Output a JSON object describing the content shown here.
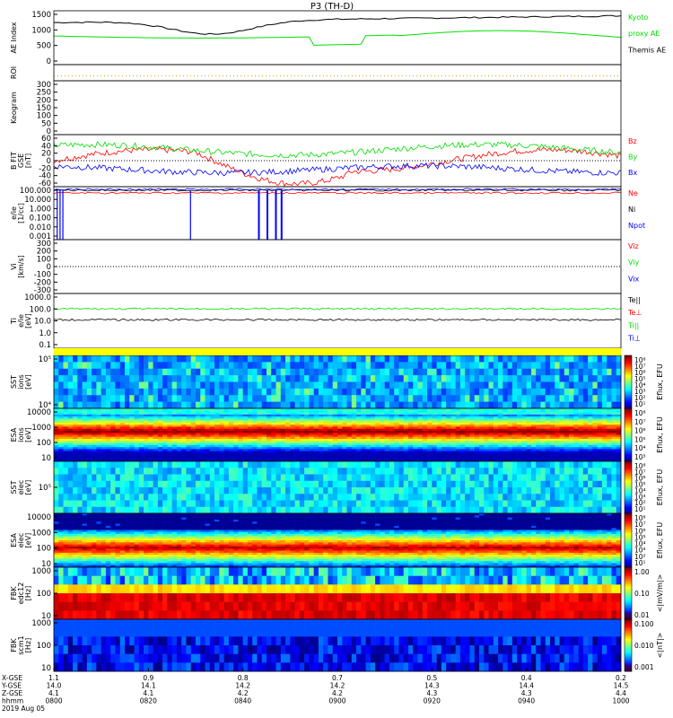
{
  "page_title": "P3 (TH-D)",
  "colors": {
    "red": "#ff0000",
    "green": "#00e000",
    "blue": "#0000ff",
    "black": "#000000",
    "yellow": "#ffff00"
  },
  "panels": [
    {
      "id": "ae",
      "ylabel": "AE Index",
      "ticks": [
        "1500",
        "1000",
        "500",
        "0"
      ],
      "legend": [
        {
          "text": "Kyoto",
          "color": "#00e000"
        },
        {
          "text": "proxy AE",
          "color": "#00e000"
        },
        {
          "text": "Themis AE",
          "color": "#000000"
        }
      ]
    },
    {
      "id": "roi",
      "ylabel": "ROI",
      "ticks": []
    },
    {
      "id": "keogram",
      "ylabel": "Keogram",
      "ticks": [
        "300",
        "250",
        "200",
        "150",
        "100",
        "50",
        "0"
      ]
    },
    {
      "id": "bfield",
      "ylabel": "B FIT",
      "ylabel2": "GSE",
      "ylabel3": "[nT]",
      "ticks": [
        "60",
        "40",
        "20",
        "0",
        "-20",
        "-40",
        "-60"
      ],
      "legend": [
        {
          "text": "Bz",
          "color": "#ff0000"
        },
        {
          "text": "By",
          "color": "#00e000"
        },
        {
          "text": "Bx",
          "color": "#0000ff"
        }
      ]
    },
    {
      "id": "density",
      "ylabel": "e/ie",
      "ylabel2": "[1/cc]",
      "ticks": [
        "100.000",
        "10.000",
        "1.000",
        "0.100",
        "0.010",
        "0.001"
      ],
      "legend": [
        {
          "text": "Ne",
          "color": "#ff0000"
        },
        {
          "text": "Ni",
          "color": "#000000"
        },
        {
          "text": "Npot",
          "color": "#0000ff"
        }
      ]
    },
    {
      "id": "velocity",
      "ylabel": "Vi",
      "ylabel2": "[km/s]",
      "ticks": [
        "300",
        "200",
        "100",
        "0",
        "-100",
        "-200",
        "-300"
      ],
      "legend": [
        {
          "text": "Viz",
          "color": "#ff0000"
        },
        {
          "text": "Viy",
          "color": "#00e000"
        },
        {
          "text": "Vix",
          "color": "#0000ff"
        }
      ]
    },
    {
      "id": "temp",
      "ylabel": "Ti",
      "ylabel2": "e/ie",
      "ylabel3": "[eV]",
      "ticks": [
        "1000.0",
        "100.0",
        "10.0",
        "1.0",
        "0.1"
      ],
      "legend": [
        {
          "text": "Te||",
          "color": "#000000"
        },
        {
          "text": "Te⊥",
          "color": "#ff0000"
        },
        {
          "text": "Ti||",
          "color": "#00e000"
        },
        {
          "text": "Ti⊥",
          "color": "#0000ff"
        }
      ]
    },
    {
      "id": "sst_i",
      "ylabel": "SST",
      "ylabel2": "ions",
      "ylabel3": "[eV]",
      "ticks": [
        "10⁵",
        "10⁴"
      ],
      "cbar": "Eflux, EFU",
      "cbar_ticks": [
        "10⁸",
        "10⁷",
        "10⁶",
        "10⁵",
        "10⁴",
        "10³",
        "10²",
        "10¹"
      ]
    },
    {
      "id": "esa_i",
      "ylabel": "ESA",
      "ylabel2": "ions",
      "ylabel3": "[eV]",
      "ticks": [
        "10000",
        "1000",
        "100",
        "10"
      ],
      "cbar": "Eflux, EFU",
      "cbar_ticks": [
        "10⁸",
        "10⁷",
        "10⁶",
        "10⁵",
        "10⁴",
        "10³"
      ]
    },
    {
      "id": "sst_e",
      "ylabel": "SST",
      "ylabel2": "elec",
      "ylabel3": "[eV]",
      "ticks": [
        "10⁵"
      ],
      "cbar": "Eflux, EFU",
      "cbar_ticks": [
        "10⁸",
        "10⁷",
        "10⁶",
        "10⁵",
        "10⁴",
        "10³",
        "10²",
        "10¹"
      ]
    },
    {
      "id": "esa_e",
      "ylabel": "ESA",
      "ylabel2": "elec",
      "ylabel3": "[eV]",
      "ticks": [
        "10000",
        "1000",
        "100",
        "10"
      ],
      "cbar": "Eflux, EFU",
      "cbar_ticks": [
        "10⁸",
        "10⁷",
        "10⁶",
        "10⁵",
        "10⁴",
        "10³",
        "10²",
        "10¹"
      ]
    },
    {
      "id": "fbk_e",
      "ylabel": "FBK",
      "ylabel2": "edc12",
      "ylabel3": "[Hz]",
      "ticks": [
        "1000",
        "100",
        "10"
      ],
      "cbar": "<|mV/m|>",
      "cbar_ticks": [
        "1.00",
        "0.10",
        "0.01"
      ]
    },
    {
      "id": "fbk_b",
      "ylabel": "FBK",
      "ylabel2": "scm1",
      "ylabel3": "[Hz]",
      "ticks": [
        "1000",
        "100",
        "10"
      ],
      "cbar": "<|nT|>",
      "cbar_ticks": [
        "0.100",
        "0.010",
        "0.001"
      ]
    }
  ],
  "xaxis": {
    "row_labels": [
      "X-GSE",
      "Y-GSE",
      "Z-GSE",
      "hhmm",
      "2019 Aug 05"
    ],
    "columns": [
      {
        "vals": [
          "1.1",
          "14.0",
          "4.1",
          "0800"
        ]
      },
      {
        "vals": [
          "0.9",
          "14.1",
          "4.1",
          "0820"
        ]
      },
      {
        "vals": [
          "0.8",
          "14.2",
          "4.2",
          "0840"
        ]
      },
      {
        "vals": [
          "0.7",
          "14.2",
          "4.2",
          "0900"
        ]
      },
      {
        "vals": [
          "0.5",
          "14.3",
          "4.3",
          "0920"
        ]
      },
      {
        "vals": [
          "0.4",
          "14.4",
          "4.3",
          "0940"
        ]
      },
      {
        "vals": [
          "0.2",
          "14.5",
          "4.4",
          "1000"
        ]
      }
    ]
  }
}
